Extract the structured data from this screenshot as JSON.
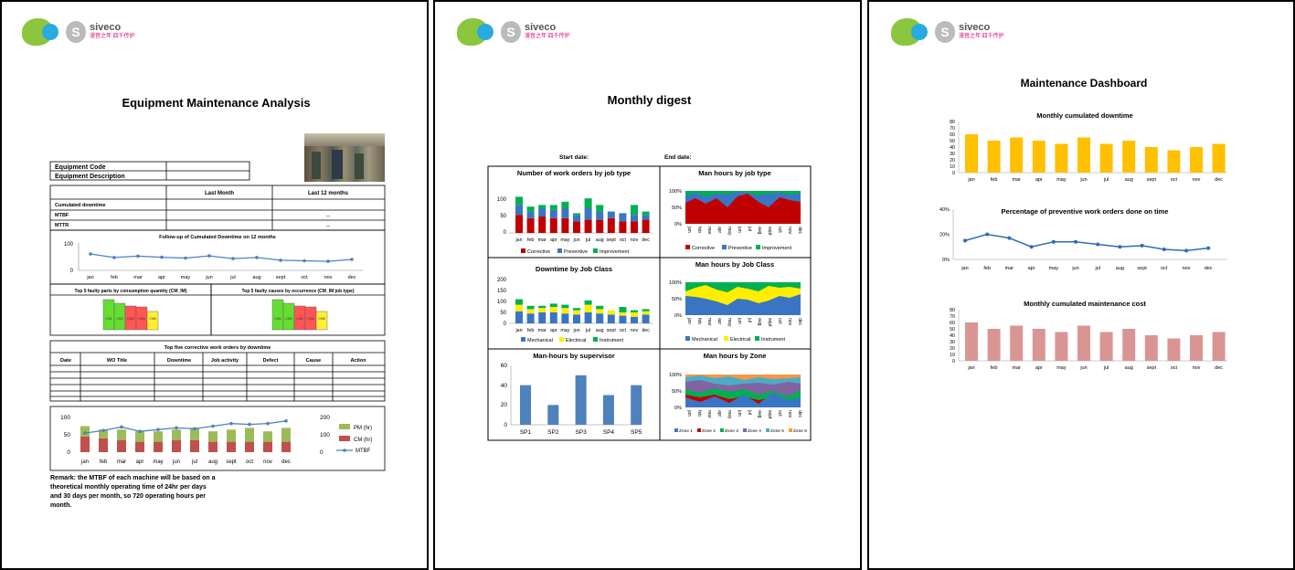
{
  "branding": {
    "company": "siveco",
    "tagline": "",
    "chinese": "漫音之年 四千传护"
  },
  "months": [
    "jan",
    "feb",
    "mar",
    "apr",
    "may",
    "jun",
    "jul",
    "aug",
    "sept",
    "oct",
    "nov",
    "dec"
  ],
  "page1": {
    "title": "Equipment Maintenance Analysis",
    "equipment_code_label": "Equipment Code",
    "equipment_description_label": "Equipment Description",
    "col_last_month": "Last Month",
    "col_last_12": "Last 12 months",
    "row_downtime": "Cumulated downtime",
    "row_mtbf": "MTBF",
    "row_mttr": "MTTR",
    "mtbf_value": "--",
    "mttr_value": "--",
    "followup_title": "Follow-up of Cumulated Downtime on 12 months",
    "followup_y_ticks": [
      "100",
      "0"
    ],
    "followup_values": [
      60,
      47,
      52,
      48,
      45,
      53,
      43,
      47,
      37,
      35,
      33,
      40
    ],
    "top5_parts_title": "Top 5 faulty parts by consumption quantity (CM_IM)",
    "top5_causes_title": "Top 5 faulty causes by occurrence (CM_IM job type)",
    "top5_bar_labels": [
      "CM1",
      "CM2",
      "CM3",
      "CM4",
      "CM5"
    ],
    "top5_colors": [
      "#66dd33",
      "#66dd33",
      "#ff5555",
      "#ff5555",
      "#ffee33"
    ],
    "corrective_title": "Top five corrective work orders by downtime",
    "corrective_cols": [
      "Date",
      "WO Title",
      "Downtime",
      "Job activity",
      "Defect",
      "Cause",
      "Action"
    ],
    "combo_left_ticks": [
      "100",
      "50",
      "0"
    ],
    "combo_right_ticks": [
      "200",
      "100",
      "0"
    ],
    "combo_pm": [
      30,
      25,
      30,
      30,
      30,
      30,
      35,
      30,
      35,
      40,
      30,
      40
    ],
    "combo_cm": [
      45,
      40,
      35,
      30,
      30,
      35,
      35,
      30,
      30,
      30,
      30,
      30
    ],
    "combo_mtbf": [
      110,
      125,
      145,
      120,
      130,
      140,
      135,
      150,
      165,
      160,
      165,
      180
    ],
    "legend_pm": "PM (hr)",
    "legend_cm": "CM (hr)",
    "legend_mtbf": "MTBF",
    "remark": "Remark: the MTBF of each machine will be based on a theoretical monthly operating time of 24hr per days and 30 days per month, so 720 operating hours per month."
  },
  "page2": {
    "title": "Monthly digest",
    "start_date_label": "Start date:",
    "end_date_label": "End date:",
    "wo_title": "Number of work orders by job type",
    "wo_ticks": [
      "100",
      "50",
      "0"
    ],
    "wo_corrective": [
      55,
      45,
      50,
      45,
      45,
      35,
      40,
      40,
      45,
      35,
      35,
      40
    ],
    "wo_preventive": [
      30,
      20,
      25,
      25,
      30,
      20,
      35,
      25,
      20,
      25,
      20,
      15
    ],
    "wo_improvement": [
      25,
      15,
      10,
      15,
      20,
      5,
      30,
      20,
      0,
      0,
      30,
      10
    ],
    "wo_legend": [
      "Corrective",
      "Preventive",
      "Improvement"
    ],
    "mh_job_title": "Man hours by job type",
    "pct_ticks": [
      "100%",
      "50%",
      "0%"
    ],
    "mh_job_legend": [
      "Corrective",
      "Preventive",
      "Improvement"
    ],
    "dt_title": "Downtime by Job Class",
    "dt_ticks": [
      "200",
      "150",
      "100",
      "50",
      "0"
    ],
    "dt_mechanical": [
      55,
      45,
      50,
      50,
      45,
      40,
      50,
      45,
      40,
      35,
      30,
      40
    ],
    "dt_electrical": [
      30,
      20,
      20,
      25,
      25,
      20,
      35,
      20,
      20,
      15,
      20,
      15
    ],
    "dt_instrument": [
      25,
      15,
      10,
      15,
      15,
      10,
      20,
      15,
      0,
      25,
      10,
      10
    ],
    "dt_legend": [
      "Mechanical",
      "Electrical",
      "Instrument"
    ],
    "mh_class_title": "Man hours by Job Class",
    "mh_class_legend": [
      "Mechanical",
      "Electrical",
      "Instrument"
    ],
    "sup_title": "Man-hours by supervisor",
    "sup_ticks": [
      "60",
      "40",
      "20",
      "0"
    ],
    "sup_categories": [
      "SP1",
      "SP2",
      "SP3",
      "SP4",
      "SP5"
    ],
    "sup_values": [
      40,
      20,
      50,
      30,
      40
    ],
    "zone_title": "Man hours by Zone",
    "zone_legend": [
      "Zone 1",
      "Zone 2",
      "Zone 3",
      "Zone 4",
      "Zone 5",
      "Zone 6"
    ],
    "colors": {
      "red": "#c00000",
      "blue": "#3a75c4",
      "green": "#00b050",
      "yellow": "#ffee00"
    }
  },
  "page3": {
    "title": "Maintenance Dashboard",
    "downtime_title": "Monthly cumulated downtime",
    "downtime_ticks": [
      "80",
      "70",
      "60",
      "50",
      "40",
      "30",
      "20",
      "10",
      "0"
    ],
    "downtime_values": [
      60,
      50,
      55,
      50,
      45,
      55,
      45,
      50,
      40,
      35,
      40,
      45
    ],
    "downtime_color": "#ffc000",
    "preventive_title": "Percentage of preventive work orders done on time",
    "preventive_ticks": [
      "40%",
      "20%",
      "0%"
    ],
    "preventive_values": [
      15,
      20,
      17,
      10,
      14,
      14,
      12,
      10,
      11,
      8,
      7,
      9
    ],
    "preventive_color": "#2e6db4",
    "cost_title": "Monthly cumulated maintenance cost",
    "cost_ticks": [
      "80",
      "70",
      "60",
      "50",
      "40",
      "30",
      "20",
      "10",
      "0"
    ],
    "cost_values": [
      60,
      50,
      55,
      50,
      45,
      55,
      45,
      50,
      40,
      35,
      40,
      45
    ],
    "cost_color": "#d99594"
  }
}
